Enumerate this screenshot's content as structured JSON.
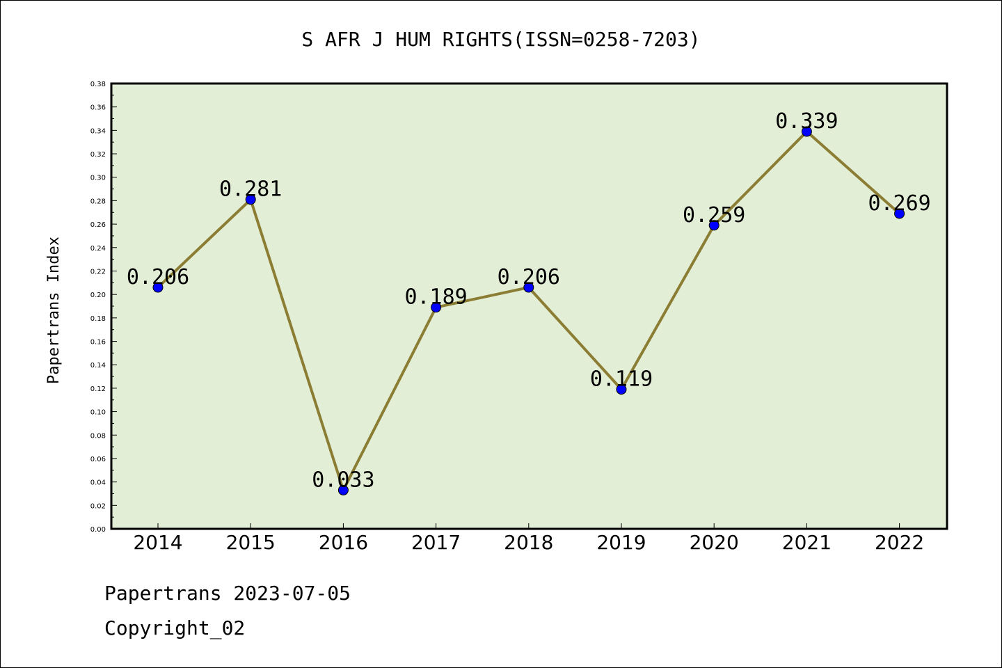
{
  "chart_data": {
    "type": "line",
    "title": "S AFR J HUM RIGHTS(ISSN=0258-7203)",
    "xlabel": "",
    "ylabel": "Papertrans Index",
    "categories": [
      "2014",
      "2015",
      "2016",
      "2017",
      "2018",
      "2019",
      "2020",
      "2021",
      "2022"
    ],
    "values": [
      0.206,
      0.281,
      0.033,
      0.189,
      0.206,
      0.119,
      0.259,
      0.339,
      0.269
    ],
    "data_labels": [
      "0.206",
      "0.281",
      "0.033",
      "0.189",
      "0.206",
      "0.119",
      "0.259",
      "0.339",
      "0.269"
    ],
    "ylim": [
      0,
      0.38
    ],
    "yticks": [
      "0.00",
      "0.02",
      "0.04",
      "0.06",
      "0.08",
      "0.10",
      "0.12",
      "0.14",
      "0.16",
      "0.18",
      "0.20",
      "0.22",
      "0.24",
      "0.26",
      "0.28",
      "0.30",
      "0.32",
      "0.34",
      "0.36",
      "0.38"
    ],
    "grid": false,
    "colors": {
      "plot_background": "#e2efd6",
      "line": "#8b7d33",
      "marker": "#0000ff"
    }
  },
  "footer": {
    "date_text": "Papertrans 2023-07-05",
    "copyright_text": "Copyright_02"
  }
}
